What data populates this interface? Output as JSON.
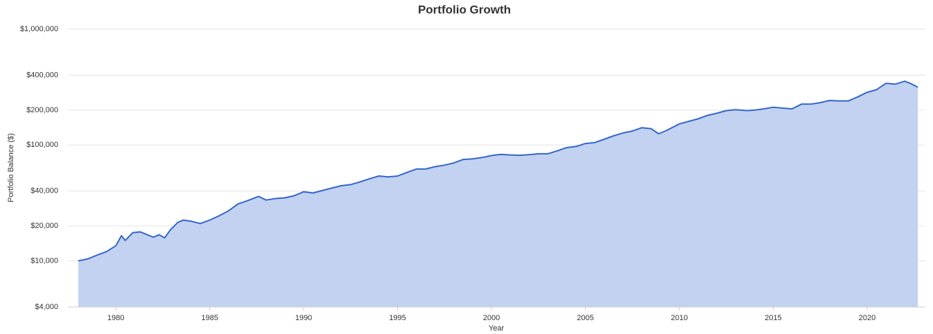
{
  "chart_data": {
    "type": "area",
    "title": "Portfolio Growth",
    "y_label": "Portfolio Balance ($)",
    "x_label": "Year",
    "log_y": true,
    "grid": true,
    "line_color": "#3366cc",
    "fill_color": "#c2d2f0",
    "xlim": [
      1977.45,
      2023.1
    ],
    "xticks": [
      1980,
      1985,
      1990,
      1995,
      2000,
      2005,
      2010,
      2015,
      2020
    ],
    "ylim": [
      4000,
      1000000
    ],
    "yticks": [
      {
        "value": 4000,
        "label": "$4,000"
      },
      {
        "value": 10000,
        "label": "$10,000"
      },
      {
        "value": 20000,
        "label": "$20,000"
      },
      {
        "value": 40000,
        "label": "$40,000"
      },
      {
        "value": 100000,
        "label": "$100,000"
      },
      {
        "value": 200000,
        "label": "$200,000"
      },
      {
        "value": 400000,
        "label": "$400,000"
      },
      {
        "value": 1000000,
        "label": "$1,000,000"
      }
    ],
    "x": [
      1978.0,
      1978.5,
      1979.0,
      1979.5,
      1980.0,
      1980.3,
      1980.5,
      1980.9,
      1981.3,
      1981.6,
      1982.0,
      1982.3,
      1982.6,
      1982.9,
      1983.3,
      1983.6,
      1984.0,
      1984.5,
      1985.0,
      1985.5,
      1986.0,
      1986.5,
      1987.0,
      1987.6,
      1988.0,
      1988.5,
      1989.0,
      1989.5,
      1990.0,
      1990.5,
      1991.0,
      1991.5,
      1992.0,
      1992.5,
      1993.0,
      1993.5,
      1994.0,
      1994.5,
      1995.0,
      1995.5,
      1996.0,
      1996.5,
      1997.0,
      1997.5,
      1998.0,
      1998.5,
      1999.0,
      1999.5,
      2000.0,
      2000.5,
      2001.0,
      2001.5,
      2002.0,
      2002.5,
      2003.0,
      2003.5,
      2004.0,
      2004.5,
      2005.0,
      2005.5,
      2006.0,
      2006.5,
      2007.0,
      2007.5,
      2008.0,
      2008.5,
      2008.9,
      2009.3,
      2010.0,
      2010.5,
      2011.0,
      2011.5,
      2012.0,
      2012.5,
      2013.0,
      2013.6,
      2014.0,
      2014.5,
      2015.0,
      2015.5,
      2016.0,
      2016.5,
      2017.0,
      2017.5,
      2018.0,
      2018.5,
      2019.0,
      2019.5,
      2020.0,
      2020.5,
      2021.0,
      2021.5,
      2022.0,
      2022.3,
      2022.7
    ],
    "values": [
      10000,
      10400,
      11200,
      12000,
      13500,
      16500,
      15000,
      17500,
      17800,
      17000,
      16000,
      16800,
      15800,
      18500,
      21500,
      22500,
      22000,
      21000,
      22500,
      24500,
      27000,
      31000,
      33000,
      36000,
      33500,
      34500,
      35000,
      36500,
      39500,
      38500,
      40500,
      42500,
      44500,
      45500,
      48000,
      51000,
      54000,
      53000,
      54000,
      58000,
      62000,
      62000,
      65000,
      67000,
      70000,
      75000,
      76000,
      78000,
      81000,
      83000,
      82000,
      81500,
      82500,
      84000,
      84000,
      89000,
      95000,
      97000,
      103000,
      105000,
      112000,
      120000,
      127000,
      132000,
      141000,
      138000,
      125000,
      133000,
      152000,
      160000,
      168000,
      180000,
      188000,
      198000,
      202000,
      198000,
      200000,
      205000,
      212000,
      208000,
      205000,
      225000,
      225000,
      232000,
      242000,
      240000,
      240000,
      260000,
      285000,
      300000,
      340000,
      335000,
      355000,
      340000,
      315000
    ]
  }
}
